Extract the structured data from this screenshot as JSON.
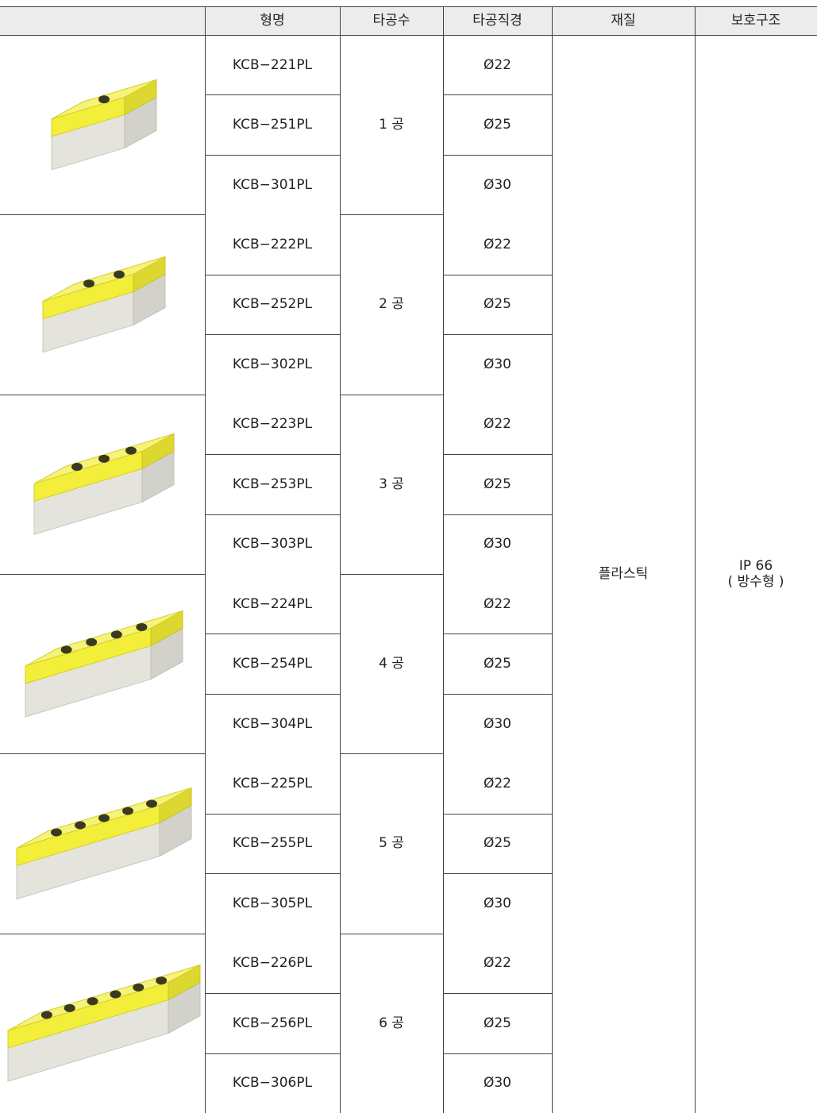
{
  "table": {
    "header": [
      "형명",
      "타공수",
      "타공직경",
      "재질",
      "보호구조"
    ],
    "groups": [
      {
        "holes": "1 공",
        "models": [
          "KCB−221PL",
          "KCB−251PL",
          "KCB−301PL"
        ],
        "diameters": [
          "Ø22",
          "Ø25",
          "Ø30"
        ]
      },
      {
        "holes": "2 공",
        "models": [
          "KCB−222PL",
          "KCB−252PL",
          "KCB−302PL"
        ],
        "diameters": [
          "Ø22",
          "Ø25",
          "Ø30"
        ]
      },
      {
        "holes": "3 공",
        "models": [
          "KCB−223PL",
          "KCB−253PL",
          "KCB−303PL"
        ],
        "diameters": [
          "Ø22",
          "Ø25",
          "Ø30"
        ]
      },
      {
        "holes": "4 공",
        "models": [
          "KCB−224PL",
          "KCB−254PL",
          "KCB−304PL"
        ],
        "diameters": [
          "Ø22",
          "Ø25",
          "Ø30"
        ]
      },
      {
        "holes": "5 공",
        "models": [
          "KCB−225PL",
          "KCB−255PL",
          "KCB−305PL"
        ],
        "diameters": [
          "Ø22",
          "Ø25",
          "Ø30"
        ]
      },
      {
        "holes": "6 공",
        "models": [
          "KCB−226PL",
          "KCB−256PL",
          "KCB−306PL"
        ],
        "diameters": [
          "Ø22",
          "Ø25",
          "Ø30"
        ]
      }
    ],
    "material": "플라스틱",
    "protection": [
      "IP 66",
      "( 방수형 )"
    ]
  }
}
